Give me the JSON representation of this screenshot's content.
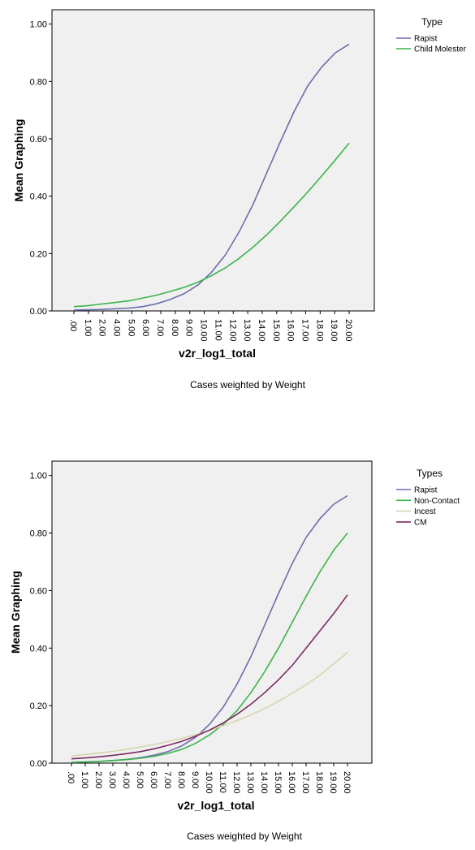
{
  "chart_data": [
    {
      "type": "line",
      "xlabel": "v2r_log1_total",
      "ylabel": "Mean Graphing",
      "ylim": [
        0,
        1.05
      ],
      "y_ticks": [
        "0.00",
        "0.20",
        "0.40",
        "0.60",
        "0.80",
        "1.00"
      ],
      "x_ticks": [
        ".00",
        "1.00",
        "2.00",
        "4.00",
        "5.00",
        "6.00",
        "7.00",
        "8.00",
        "9.00",
        "10.00",
        "11.00",
        "12.00",
        "13.00",
        "14.00",
        "15.00",
        "16.00",
        "17.00",
        "18.00",
        "19.00",
        "20.00"
      ],
      "x": [
        0,
        1,
        2,
        4,
        5,
        6,
        7,
        8,
        9,
        10,
        11,
        12,
        13,
        14,
        15,
        16,
        17,
        18,
        19,
        20
      ],
      "legend_title": "Type",
      "legend_position": "right",
      "footnote": "Cases weighted by Weight",
      "series": [
        {
          "name": "Rapist",
          "color": "#6a6fae",
          "values": [
            0.003,
            0.004,
            0.005,
            0.01,
            0.015,
            0.025,
            0.04,
            0.06,
            0.09,
            0.135,
            0.195,
            0.275,
            0.37,
            0.48,
            0.59,
            0.695,
            0.785,
            0.85,
            0.9,
            0.93
          ]
        },
        {
          "name": "Child Molester",
          "color": "#3cb44b",
          "values": [
            0.015,
            0.018,
            0.024,
            0.035,
            0.045,
            0.055,
            0.068,
            0.082,
            0.1,
            0.123,
            0.15,
            0.183,
            0.222,
            0.265,
            0.313,
            0.363,
            0.415,
            0.47,
            0.527,
            0.585
          ]
        }
      ]
    },
    {
      "type": "line",
      "xlabel": "v2r_log1_total",
      "ylabel": "Mean Graphing",
      "ylim": [
        0,
        1.05
      ],
      "y_ticks": [
        "0.00",
        "0.20",
        "0.40",
        "0.60",
        "0.80",
        "1.00"
      ],
      "x_ticks": [
        ".00",
        "1.00",
        "2.00",
        "3.00",
        "4.00",
        "5.00",
        "6.00",
        "7.00",
        "8.00",
        "9.00",
        "10.00",
        "11.00",
        "12.00",
        "13.00",
        "14.00",
        "15.00",
        "16.00",
        "17.00",
        "18.00",
        "19.00",
        "20.00"
      ],
      "x": [
        0,
        1,
        2,
        3,
        4,
        5,
        6,
        7,
        8,
        9,
        10,
        11,
        12,
        13,
        14,
        15,
        16,
        17,
        18,
        19,
        20
      ],
      "legend_title": "Types",
      "legend_position": "right",
      "footnote": "Cases weighted by Weight",
      "series": [
        {
          "name": "Rapist",
          "color": "#6a6fae",
          "values": [
            0.003,
            0.004,
            0.006,
            0.009,
            0.013,
            0.019,
            0.028,
            0.04,
            0.06,
            0.09,
            0.135,
            0.195,
            0.275,
            0.37,
            0.48,
            0.59,
            0.695,
            0.785,
            0.85,
            0.9,
            0.93
          ]
        },
        {
          "name": "Non-Contact",
          "color": "#3cb44b",
          "values": [
            0.003,
            0.004,
            0.006,
            0.009,
            0.012,
            0.017,
            0.024,
            0.034,
            0.048,
            0.069,
            0.098,
            0.135,
            0.183,
            0.245,
            0.318,
            0.4,
            0.49,
            0.58,
            0.665,
            0.74,
            0.8
          ]
        },
        {
          "name": "Incest",
          "color": "#d8d5ad",
          "values": [
            0.025,
            0.03,
            0.035,
            0.041,
            0.048,
            0.056,
            0.065,
            0.075,
            0.086,
            0.099,
            0.114,
            0.13,
            0.148,
            0.168,
            0.19,
            0.215,
            0.243,
            0.273,
            0.306,
            0.345,
            0.385
          ]
        },
        {
          "name": "CM",
          "color": "#7d2a63",
          "values": [
            0.015,
            0.018,
            0.022,
            0.027,
            0.033,
            0.04,
            0.05,
            0.062,
            0.076,
            0.094,
            0.115,
            0.14,
            0.17,
            0.205,
            0.245,
            0.29,
            0.34,
            0.4,
            0.46,
            0.52,
            0.585
          ]
        }
      ]
    }
  ]
}
